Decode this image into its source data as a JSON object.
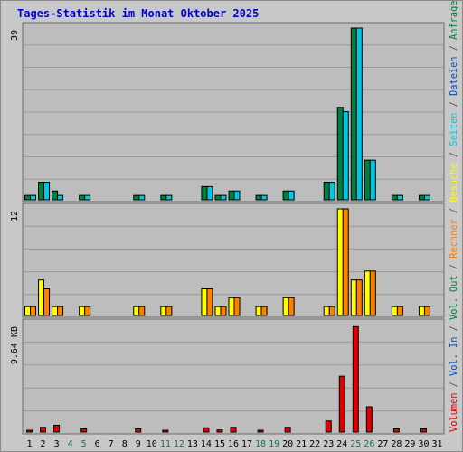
{
  "title": "Tages-Statistik im Monat Oktober 2025",
  "colors": {
    "background": "#c8c8c8",
    "panel": "#bdbdbd",
    "grid": "#9a9a9a",
    "title": "#0000cc",
    "anfragen": "#008040",
    "dateien": "#00c8e8",
    "besuche": "#ffff00",
    "rechner": "#ff8000",
    "volumen": "#e00000",
    "weekday_label": "#000000",
    "weekend_label": "#008040",
    "right_separator": "#555555"
  },
  "chart_data": {
    "type": "bar",
    "x_label_colors_note": "",
    "categories": [
      "1",
      "2",
      "3",
      "4",
      "5",
      "6",
      "7",
      "8",
      "9",
      "10",
      "11",
      "12",
      "13",
      "14",
      "15",
      "16",
      "17",
      "18",
      "19",
      "20",
      "21",
      "22",
      "23",
      "24",
      "25",
      "26",
      "27",
      "28",
      "29",
      "30",
      "31"
    ],
    "weekend_days": [
      "4",
      "5",
      "11",
      "12",
      "18",
      "19",
      "25",
      "26"
    ],
    "panels": [
      {
        "id": "requests",
        "y_tick_label": "39",
        "ylim": [
          0,
          39
        ],
        "series": [
          {
            "name": "Anfragen",
            "color": "#008040",
            "values": [
              1,
              4,
              2,
              0,
              1,
              0,
              0,
              0,
              1,
              0,
              1,
              0,
              0,
              3,
              1,
              2,
              0,
              1,
              0,
              2,
              0,
              0,
              4,
              21,
              39,
              9,
              0,
              1,
              0,
              1,
              0
            ]
          },
          {
            "name": "Dateien",
            "color": "#00c8e8",
            "values": [
              1,
              4,
              1,
              0,
              1,
              0,
              0,
              0,
              1,
              0,
              1,
              0,
              0,
              3,
              1,
              2,
              0,
              1,
              0,
              2,
              0,
              0,
              4,
              20,
              39,
              9,
              0,
              1,
              0,
              1,
              0
            ]
          }
        ]
      },
      {
        "id": "visits",
        "y_tick_label": "12",
        "ylim": [
          0,
          12
        ],
        "series": [
          {
            "name": "Besuche",
            "color": "#ffff00",
            "values": [
              1,
              4,
              1,
              0,
              1,
              0,
              0,
              0,
              1,
              0,
              1,
              0,
              0,
              3,
              1,
              2,
              0,
              1,
              0,
              2,
              0,
              0,
              1,
              12,
              4,
              5,
              0,
              1,
              0,
              1,
              0
            ]
          },
          {
            "name": "Rechner",
            "color": "#ff8000",
            "values": [
              1,
              3,
              1,
              0,
              1,
              0,
              0,
              0,
              1,
              0,
              1,
              0,
              0,
              3,
              1,
              2,
              0,
              1,
              0,
              2,
              0,
              0,
              1,
              12,
              4,
              5,
              0,
              1,
              0,
              1,
              0
            ]
          }
        ]
      },
      {
        "id": "volume",
        "y_tick_label": "9.64 KB",
        "ylim": [
          0,
          10.2
        ],
        "series": [
          {
            "name": "Vol. Out",
            "color": "#008040",
            "values": [
              0,
              0,
              0,
              0,
              0,
              0,
              0,
              0,
              0,
              0,
              0,
              0,
              0,
              0,
              0,
              0,
              0,
              0,
              0,
              0,
              0,
              0,
              0,
              0,
              0,
              0,
              0,
              0,
              0,
              0,
              0
            ]
          },
          {
            "name": "Vol. In",
            "color": "#0050c0",
            "values": [
              0,
              0,
              0,
              0,
              0,
              0,
              0,
              0,
              0,
              0,
              0,
              0,
              0,
              0,
              0,
              0,
              0,
              0,
              0,
              0,
              0,
              0,
              0,
              0,
              0,
              0,
              0,
              0,
              0,
              0,
              0
            ]
          },
          {
            "name": "Volumen",
            "color": "#e00000",
            "values": [
              0.15,
              0.45,
              0.65,
              0,
              0.3,
              0,
              0,
              0,
              0.3,
              0,
              0.15,
              0,
              0,
              0.4,
              0.2,
              0.45,
              0,
              0.15,
              0,
              0.45,
              0,
              0,
              1.05,
              5.3,
              10.0,
              2.4,
              0,
              0.3,
              0,
              0.3,
              0
            ]
          }
        ]
      }
    ],
    "legend": {
      "placement": "right-vertical",
      "separator": "/",
      "entries": [
        {
          "label": "Anfragen",
          "color": "#008040"
        },
        {
          "label": "Dateien",
          "color": "#0050c0"
        },
        {
          "label": "Seiten",
          "color": "#00c8e8"
        },
        {
          "label": "Besuche",
          "color": "#ffff00"
        },
        {
          "label": "Rechner",
          "color": "#ff8000"
        },
        {
          "label": "Vol. Out",
          "color": "#008040"
        },
        {
          "label": "Vol. In",
          "color": "#0050c0"
        },
        {
          "label": "Volumen",
          "color": "#e00000"
        }
      ]
    }
  }
}
